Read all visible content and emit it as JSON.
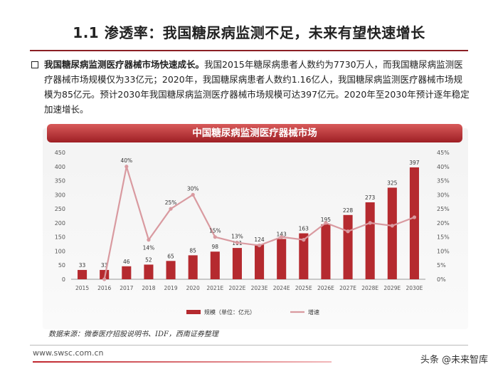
{
  "title": "1.1 渗透率：我国糖尿病监测不足，未来有望快速增长",
  "paragraph": {
    "lead": "我国糖尿病监测医疗器械市场快速成长。",
    "body": "我国2015年糖尿病患者人数约为7730万人，而我国糖尿病监测医疗器械市场规模仅为33亿元；2020年，我国糖尿病患者人数约1.16亿人，我国糖尿病监测医疗器械市场规模为85亿元。预计2030年我国糖尿病监测医疗器械市场规模可达397亿元。2020年至2030年预计逐年稳定加速增长。"
  },
  "source": "数据来源：微泰医疗招股说明书、IDF，西南证券整理",
  "footer_url": "www.swsc.com.cn",
  "watermark": "头条 @未来智库",
  "colors": {
    "accent": "#8b1f24",
    "bar": "#b52a2f",
    "line": "#d99aa0"
  },
  "chart_data": {
    "type": "bar",
    "title": "中国糖尿病监测医疗器械市场",
    "categories": [
      "2015",
      "2016",
      "2017",
      "2018",
      "2019",
      "2020",
      "2021E",
      "2022E",
      "2023E",
      "2024E",
      "2025E",
      "2026E",
      "2027E",
      "2028E",
      "2029E",
      "2030E"
    ],
    "series": [
      {
        "name": "规模（单位：亿元）",
        "type": "bar",
        "axis": "left",
        "values": [
          33,
          33,
          46,
          52,
          65,
          85,
          98,
          111,
          124,
          143,
          163,
          195,
          228,
          273,
          325,
          397
        ],
        "labels": [
          "33",
          "33",
          "46",
          "52",
          "65",
          "85",
          "98",
          "111",
          "124",
          "143",
          "163",
          "195",
          "228",
          "273",
          "325",
          "397"
        ]
      },
      {
        "name": "增速",
        "type": "line",
        "axis": "right",
        "values": [
          null,
          0,
          40,
          14,
          25,
          30,
          15,
          13,
          12,
          15,
          14,
          20,
          17,
          20,
          19,
          22
        ],
        "labels": [
          "",
          "",
          "40%",
          "14%",
          "25%",
          "30%",
          "15%",
          "13%",
          "",
          "",
          "",
          "",
          "",
          "",
          "",
          ""
        ]
      }
    ],
    "y_left": {
      "min": 0,
      "max": 450,
      "ticks": [
        "0",
        "50",
        "100",
        "150",
        "200",
        "250",
        "300",
        "350",
        "400",
        "450"
      ]
    },
    "y_right": {
      "min": 0,
      "max": 45,
      "ticks": [
        "0%",
        "5%",
        "10%",
        "15%",
        "20%",
        "25%",
        "30%",
        "35%",
        "40%",
        "45%"
      ]
    },
    "legend_position": "bottom"
  }
}
